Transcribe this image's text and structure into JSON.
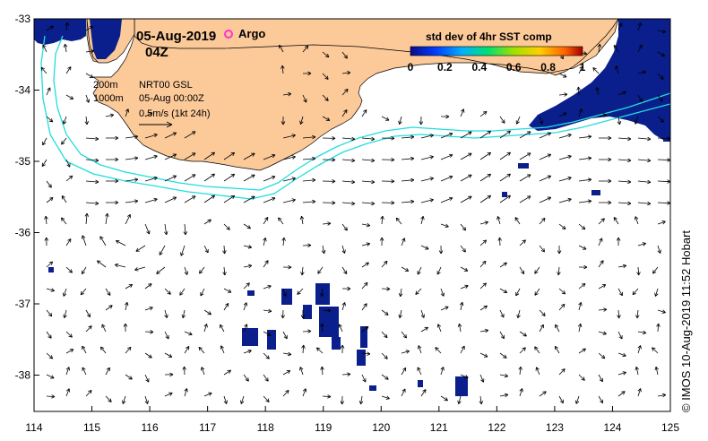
{
  "header": {
    "date": "05-Aug-2019",
    "time": "04Z",
    "argo_label": "Argo"
  },
  "legend": {
    "contour_200": "200m",
    "contour_1000": "1000m",
    "product": "NRT00 GSL",
    "valid_time": "05-Aug 00:00Z",
    "arrow_scale": "0.5m/s (1kt 24h)"
  },
  "colorbar": {
    "title": "std dev of 4hr SST comp",
    "ticks": [
      "0",
      "0.2",
      "0.4",
      "0.6",
      "0.8",
      "1"
    ]
  },
  "credit": "© IMOS 10-Aug-2019 11:52 Hobart",
  "axes": {
    "x_ticks": [
      "114",
      "115",
      "116",
      "117",
      "118",
      "119",
      "120",
      "121",
      "122",
      "123",
      "124",
      "125"
    ],
    "y_ticks": [
      "-33",
      "-34",
      "-35",
      "-36",
      "-37",
      "-38"
    ]
  },
  "colors": {
    "land": "#fcc999",
    "contour": "#22dddd",
    "sst_patch": "#0a1f8c",
    "argo": "#ff33cc"
  }
}
